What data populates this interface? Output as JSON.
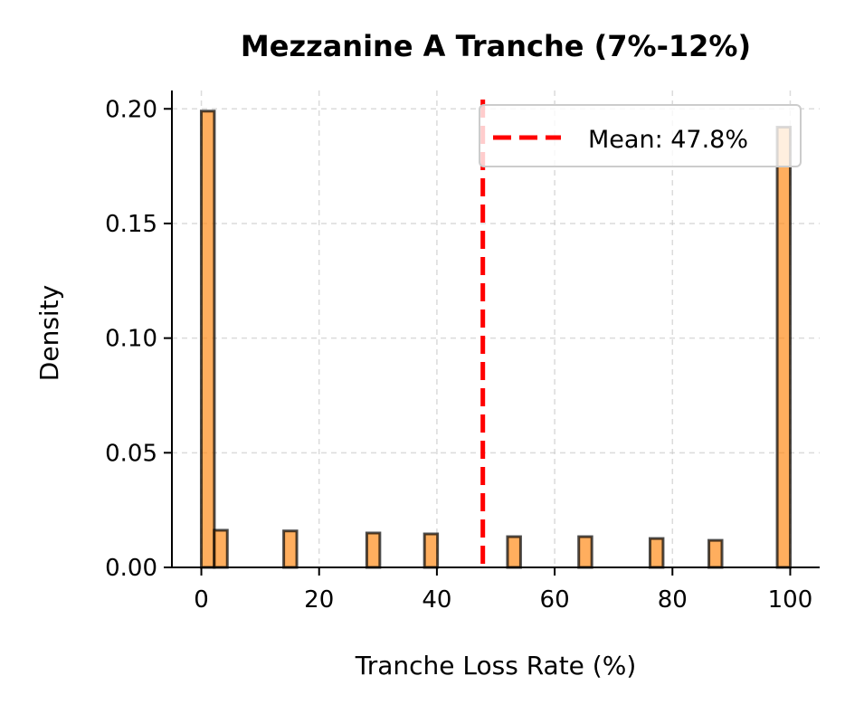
{
  "chart_data": {
    "type": "bar",
    "title": "Mezzanine A Tranche (7%-12%)",
    "xlabel": "Tranche Loss Rate (%)",
    "ylabel": "Density",
    "xlim": [
      -5,
      105
    ],
    "ylim": [
      0,
      0.208
    ],
    "xticks": [
      0,
      20,
      40,
      60,
      80,
      100
    ],
    "xtick_labels": [
      "0",
      "20",
      "40",
      "60",
      "80",
      "100"
    ],
    "yticks": [
      0,
      0.05,
      0.1,
      0.15,
      0.2
    ],
    "ytick_labels": [
      "0.00",
      "0.05",
      "0.10",
      "0.15",
      "0.20"
    ],
    "grid": true,
    "bin_width": 2.22,
    "bins": [
      {
        "x": 1.1,
        "density": 0.199
      },
      {
        "x": 3.3,
        "density": 0.0162
      },
      {
        "x": 15.1,
        "density": 0.0159
      },
      {
        "x": 29.2,
        "density": 0.015
      },
      {
        "x": 39.0,
        "density": 0.0146
      },
      {
        "x": 53.1,
        "density": 0.0134
      },
      {
        "x": 65.2,
        "density": 0.0134
      },
      {
        "x": 77.3,
        "density": 0.0126
      },
      {
        "x": 87.3,
        "density": 0.0118
      },
      {
        "x": 98.9,
        "density": 0.192
      }
    ],
    "bar_color": "#ff8c1a",
    "bar_edge_color": "#000000",
    "mean": {
      "value": 47.8,
      "label": "Mean: 47.8%",
      "color": "#ff0000"
    },
    "legend_position": "top-right"
  }
}
